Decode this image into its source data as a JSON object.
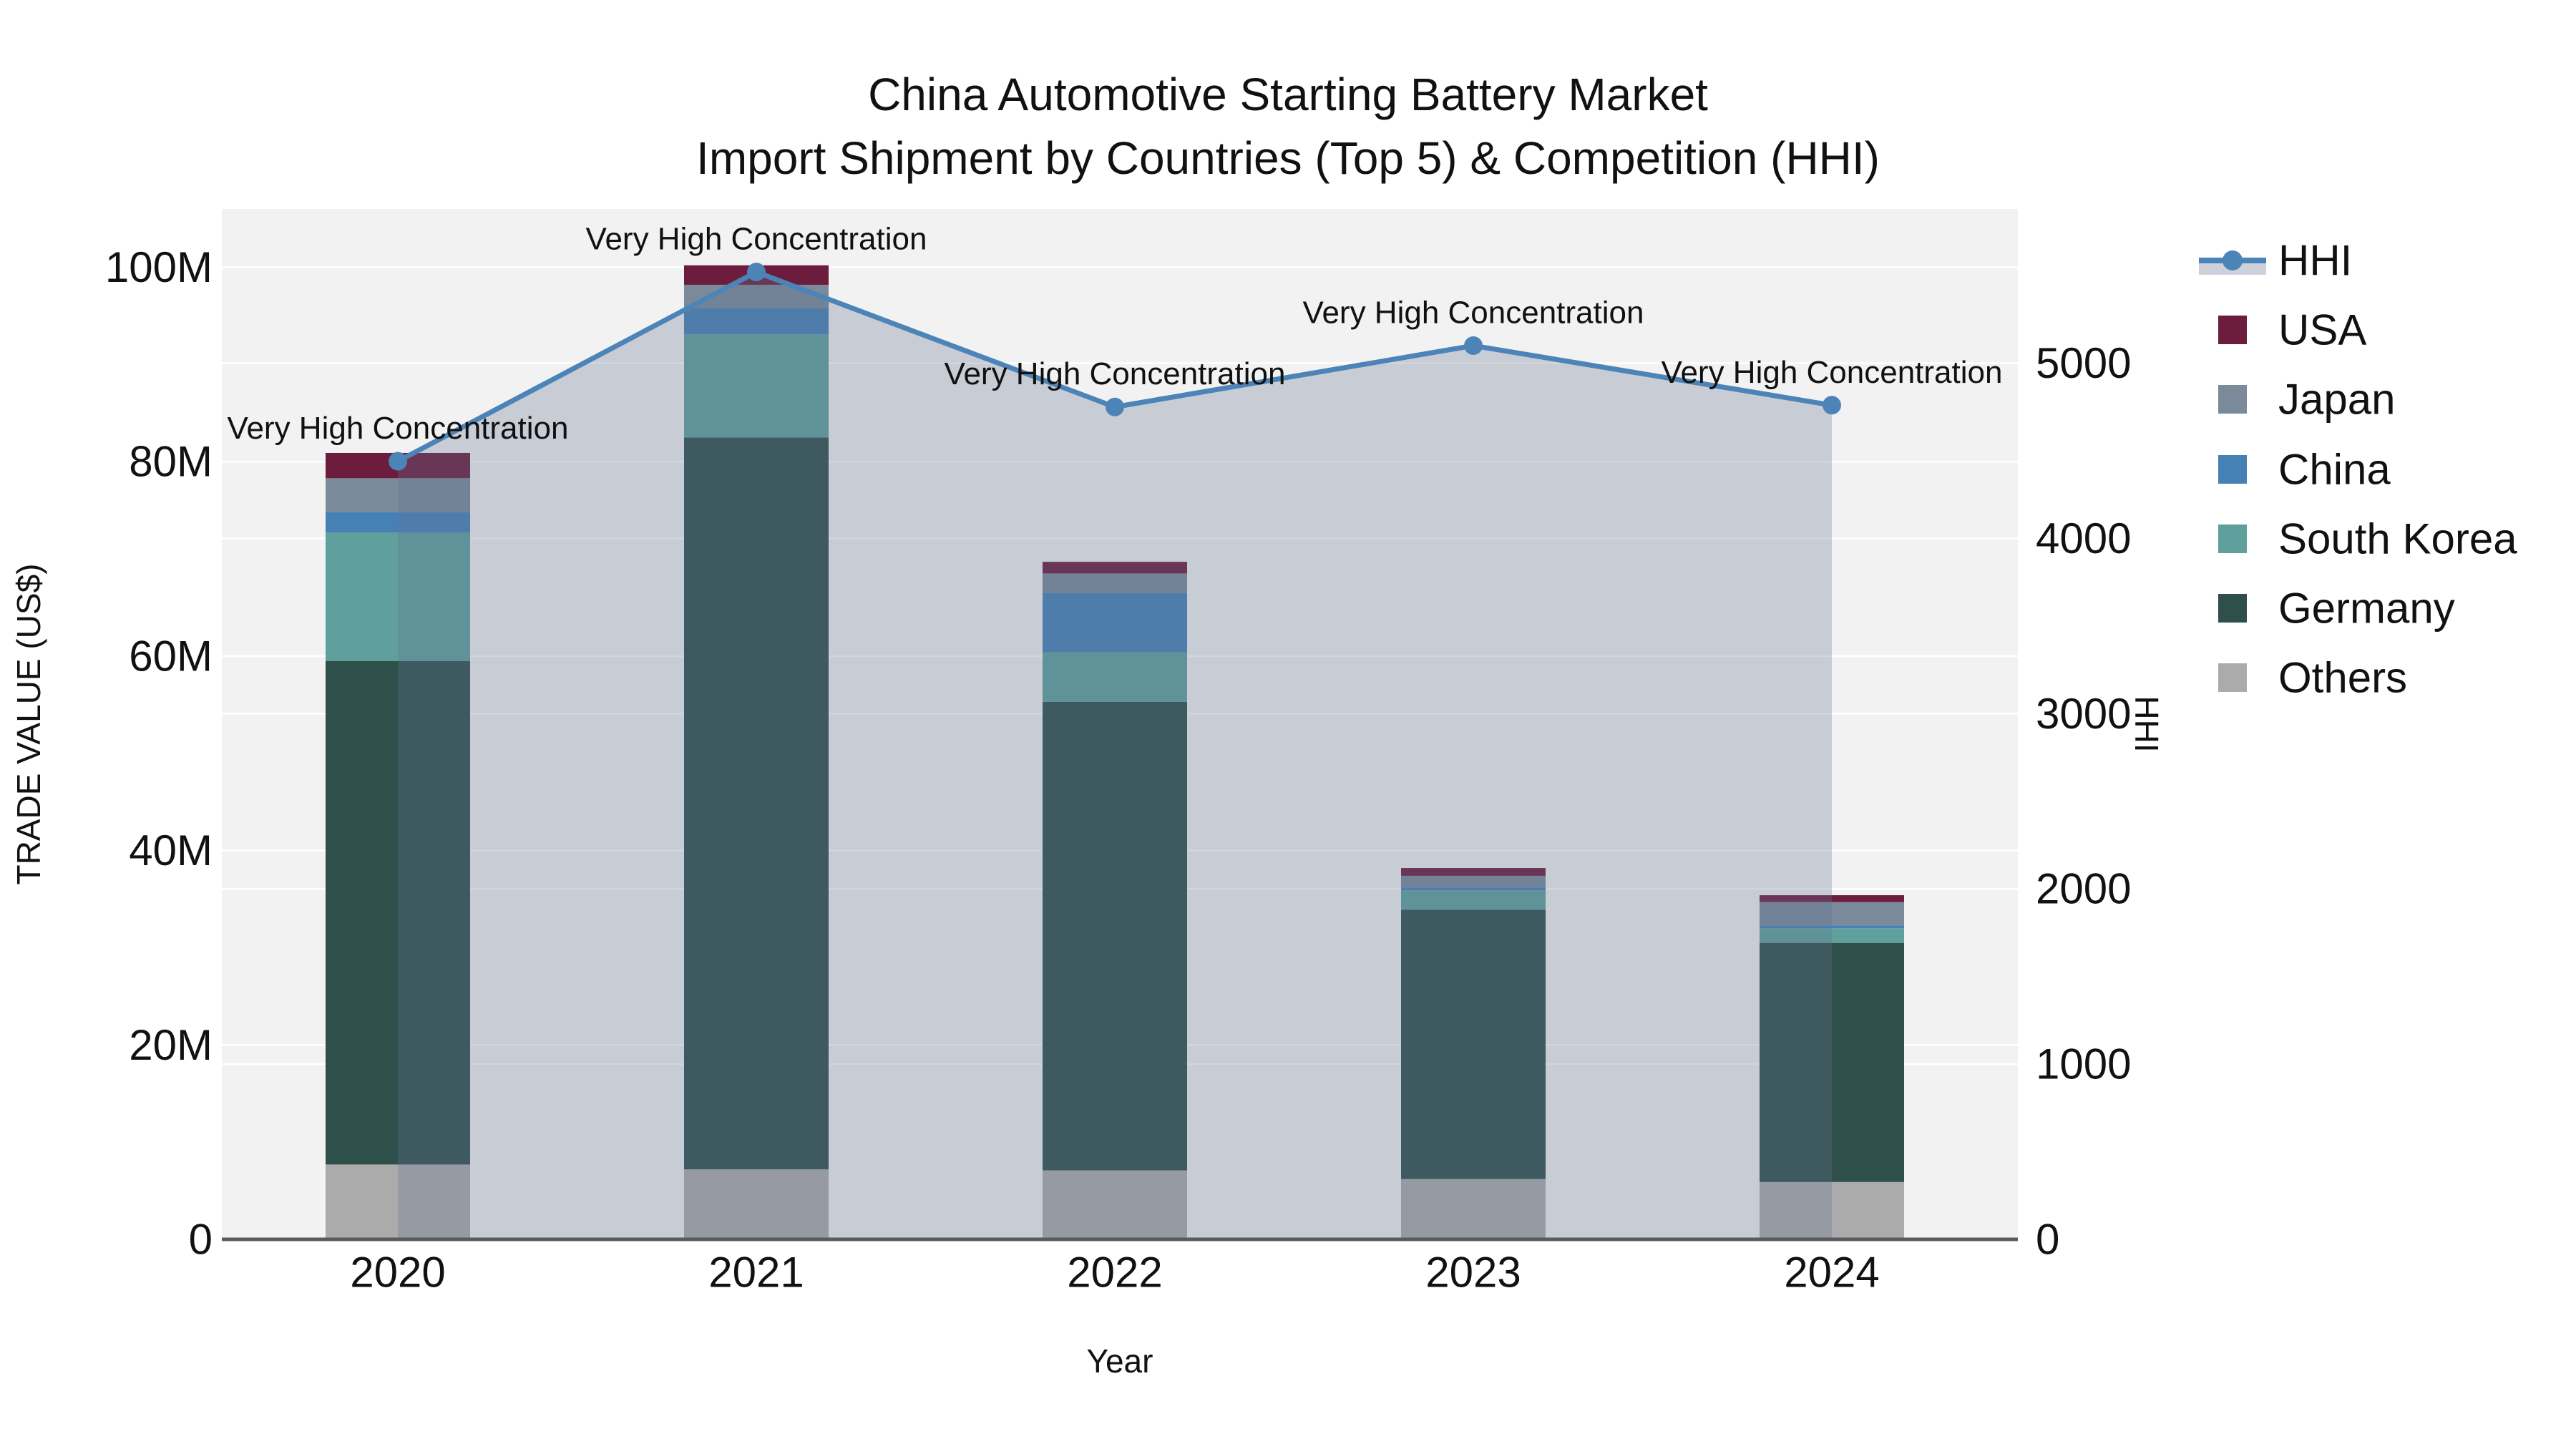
{
  "title": {
    "line1": "China Automotive Starting Battery Market",
    "line2": "Import Shipment by Countries (Top 5) & Competition (HHI)"
  },
  "colors": {
    "plot_bg": "#f2f2f2",
    "gridline": "#ffffff",
    "axis_line": "#5a5a5a",
    "text": "#111111",
    "hhi_line": "#4C84B8",
    "hhi_fill": "rgba(100,115,145,0.30)",
    "hhi_fill_legend": "#ccd1dc",
    "USA": "#6C1C3C",
    "Japan": "#7A8A9A",
    "China": "#4681B6",
    "South Korea": "#5FA09D",
    "Germany": "#2F4F4B",
    "Others": "#ABABAB"
  },
  "legend": {
    "items": [
      {
        "label": "HHI",
        "type": "line",
        "color": "#4C84B8"
      },
      {
        "label": "USA",
        "type": "swatch",
        "color": "#6C1C3C"
      },
      {
        "label": "Japan",
        "type": "swatch",
        "color": "#7A8A9A"
      },
      {
        "label": "China",
        "type": "swatch",
        "color": "#4681B6"
      },
      {
        "label": "South Korea",
        "type": "swatch",
        "color": "#5FA09D"
      },
      {
        "label": "Germany",
        "type": "swatch",
        "color": "#2F4F4B"
      },
      {
        "label": "Others",
        "type": "swatch",
        "color": "#ABABAB"
      }
    ]
  },
  "chart_data": {
    "type": "bar+line",
    "title": "China Automotive Starting Battery Market — Import Shipment by Countries (Top 5) & Competition (HHI)",
    "categories": [
      "2020",
      "2021",
      "2022",
      "2023",
      "2024"
    ],
    "stack_order_bottom_to_top": [
      "Others",
      "Germany",
      "South Korea",
      "China",
      "Japan",
      "USA"
    ],
    "series": [
      {
        "name": "Others",
        "unit": "M US$",
        "values": [
          7.7,
          7.2,
          7.1,
          6.2,
          5.9
        ]
      },
      {
        "name": "Germany",
        "unit": "M US$",
        "values": [
          51.8,
          75.3,
          48.2,
          27.7,
          24.6
        ]
      },
      {
        "name": "South Korea",
        "unit": "M US$",
        "values": [
          13.2,
          10.6,
          5.1,
          2.0,
          1.5
        ]
      },
      {
        "name": "China",
        "unit": "M US$",
        "values": [
          2.1,
          2.7,
          6.1,
          0.3,
          0.3
        ]
      },
      {
        "name": "Japan",
        "unit": "M US$",
        "values": [
          3.5,
          2.4,
          2.0,
          1.2,
          2.4
        ]
      },
      {
        "name": "USA",
        "unit": "M US$",
        "values": [
          2.6,
          2.0,
          1.2,
          0.8,
          0.7
        ]
      }
    ],
    "bar_totals_M": [
      80.9,
      100.2,
      69.7,
      38.2,
      35.4
    ],
    "hhi": {
      "name": "HHI",
      "values": [
        4440,
        5520,
        4750,
        5100,
        4760
      ],
      "fill": "tozeroy"
    },
    "annotations": [
      {
        "x": "2020",
        "text": "Very High Concentration"
      },
      {
        "x": "2021",
        "text": "Very High Concentration"
      },
      {
        "x": "2022",
        "text": "Very High Concentration"
      },
      {
        "x": "2023",
        "text": "Very High Concentration"
      },
      {
        "x": "2024",
        "text": "Very High Concentration"
      }
    ],
    "xlabel": "Year",
    "ylabel_left": "TRADE VALUE (US$)",
    "ylabel_right": "HHI",
    "ylim_left_M": [
      0,
      106
    ],
    "ylim_right": [
      0,
      5880
    ],
    "yticks_left": [
      {
        "value": 0,
        "label": "0"
      },
      {
        "value": 20,
        "label": "20M"
      },
      {
        "value": 40,
        "label": "40M"
      },
      {
        "value": 60,
        "label": "60M"
      },
      {
        "value": 80,
        "label": "80M"
      },
      {
        "value": 100,
        "label": "100M"
      }
    ],
    "yticks_right": [
      {
        "value": 0,
        "label": "0"
      },
      {
        "value": 1000,
        "label": "1000"
      },
      {
        "value": 2000,
        "label": "2000"
      },
      {
        "value": 3000,
        "label": "3000"
      },
      {
        "value": 4000,
        "label": "4000"
      },
      {
        "value": 5000,
        "label": "5000"
      }
    ],
    "grid": true,
    "legend_position": "right"
  }
}
